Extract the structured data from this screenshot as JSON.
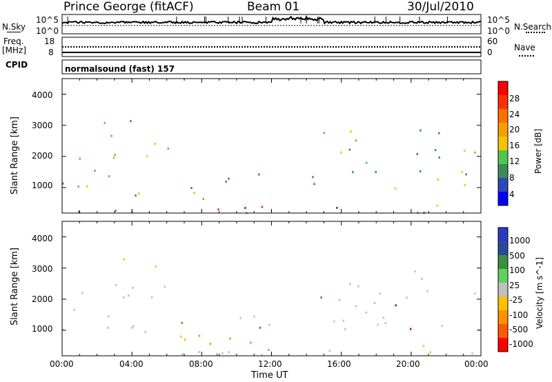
{
  "header": {
    "station": "Prince George (fitACF)",
    "beam": "Beam 01",
    "date": "30/Jul/2010"
  },
  "strip_nsky": {
    "left_label": "N.Sky",
    "right_label": "N.Search",
    "left_ticks": [
      "10^5",
      "10^0"
    ],
    "right_ticks": [
      "10^5",
      "10^0"
    ]
  },
  "strip_freq": {
    "left_label_1": "Freq.",
    "left_label_2": "[MHz]",
    "right_label": "Nave",
    "left_ticks": [
      "18",
      "8"
    ],
    "right_ticks": [
      "60",
      "0"
    ]
  },
  "cpid": {
    "label": "CPID",
    "value": "normalsound (fast) 157"
  },
  "colors": {
    "power": [
      "#0000ff",
      "#2b49b8",
      "#3d8a5a",
      "#50c850",
      "#f5c400",
      "#f5a000",
      "#ff7000",
      "#ff3000",
      "#ff0000"
    ],
    "velocity": [
      "#ff0000",
      "#ff5a00",
      "#ff9000",
      "#ffc000",
      "#c0c0c0",
      "#60d060",
      "#3a9040",
      "#2a4aa0",
      "#2a3ac0"
    ]
  },
  "chart_data": [
    {
      "type": "heatmap",
      "name": "power",
      "ylabel": "Slant Range [km]",
      "xlabel": "",
      "x_ticks": [
        "00:00",
        "04:00",
        "08:00",
        "12:00",
        "16:00",
        "20:00",
        "00:00"
      ],
      "y_ticks": [
        "1000",
        "2000",
        "3000",
        "4000"
      ],
      "ylim": [
        180,
        4500
      ],
      "xlim": [
        0,
        24
      ],
      "colorbar": {
        "label": "Power [dB]",
        "ticks": [
          "4",
          "8",
          "12",
          "16",
          "20",
          "24",
          "28"
        ]
      }
    },
    {
      "type": "heatmap",
      "name": "velocity",
      "ylabel": "Slant Range [km]",
      "xlabel": "Time UT",
      "x_ticks": [
        "00:00",
        "04:00",
        "08:00",
        "12:00",
        "16:00",
        "20:00",
        "00:00"
      ],
      "y_ticks": [
        "1000",
        "2000",
        "3000",
        "4000"
      ],
      "ylim": [
        180,
        4500
      ],
      "xlim": [
        0,
        24
      ],
      "colorbar": {
        "label": "Velocity [m s^-1]",
        "ticks": [
          "1000",
          "500",
          "100",
          "25",
          "-25",
          "-100",
          "-500",
          "-1000"
        ]
      }
    }
  ]
}
